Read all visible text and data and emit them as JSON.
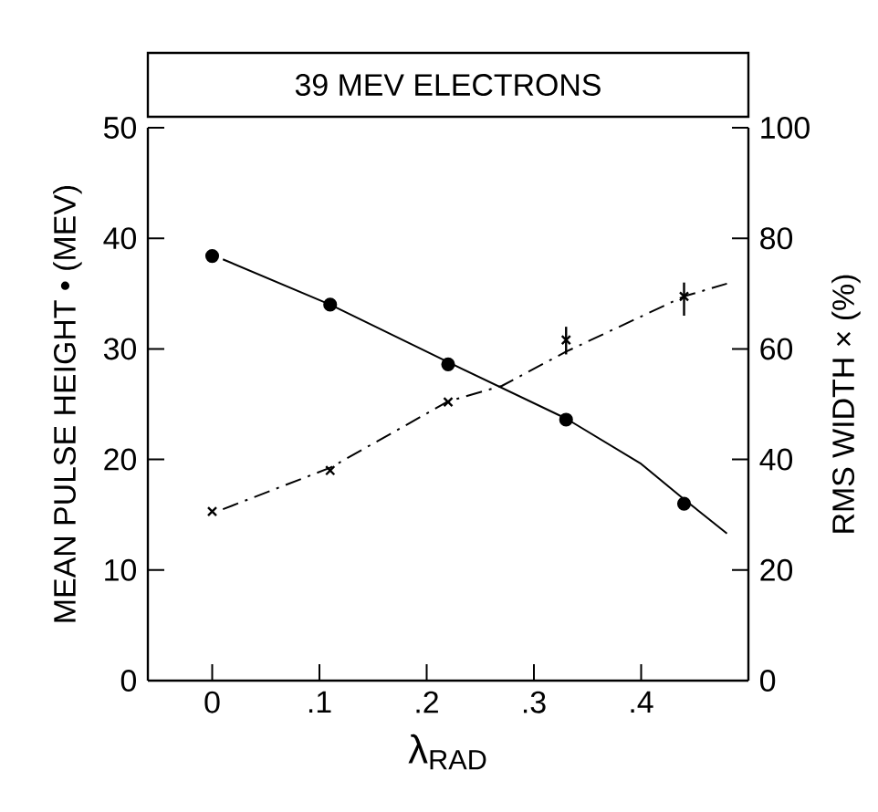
{
  "chart_data": {
    "type": "scatter",
    "title": "39 MEV  ELECTRONS",
    "xlabel": "λ$_{RAD}$",
    "ylabel": "MEAN PULSE HEIGHT • (MEV)",
    "y2label": "RMS WIDTH × (%)",
    "xlim": [
      -0.06,
      0.5
    ],
    "xticks": [
      {
        "value": 0,
        "label": "0"
      },
      {
        "value": 0.1,
        "label": ".1"
      },
      {
        "value": 0.2,
        "label": ".2"
      },
      {
        "value": 0.3,
        "label": ".3"
      },
      {
        "value": 0.4,
        "label": ".4"
      }
    ],
    "ylim": [
      0,
      50
    ],
    "yticks": [
      0,
      10,
      20,
      30,
      40,
      50
    ],
    "y2lim": [
      0,
      100
    ],
    "y2ticks": [
      0,
      20,
      40,
      60,
      80,
      100
    ],
    "series": [
      {
        "axis": "y",
        "marker": "circle",
        "color": "#000000",
        "x": [
          0,
          0.11,
          0.22,
          0.33,
          0.44
        ],
        "values": [
          38.4,
          34.0,
          28.6,
          23.6,
          16.0
        ]
      },
      {
        "axis": "y2",
        "marker": "cross",
        "color": "#000000",
        "x": [
          0,
          0.11,
          0.22,
          0.33,
          0.44
        ],
        "values": [
          30.6,
          38.0,
          50.4,
          61.6,
          69.5
        ],
        "errors": [
          null,
          null,
          null,
          [
            59,
            64
          ],
          [
            66,
            72
          ]
        ]
      },
      {
        "type": "line",
        "axis": "y",
        "marker": "none",
        "line_style": "solid",
        "color": "#000000",
        "x": [
          0.01,
          0.11,
          0.22,
          0.33,
          0.4,
          0.44,
          0.48
        ],
        "values": [
          38.1,
          34.0,
          28.8,
          23.7,
          19.6,
          16.4,
          13.3
        ]
      },
      {
        "type": "line",
        "axis": "y2",
        "marker": "none",
        "line_style": "dashdot",
        "color": "#000000",
        "x": [
          0.01,
          0.11,
          0.22,
          0.27,
          0.33,
          0.44,
          0.48
        ],
        "values": [
          31.0,
          38.5,
          50.5,
          53.3,
          59.5,
          69.5,
          71.8
        ]
      }
    ]
  }
}
